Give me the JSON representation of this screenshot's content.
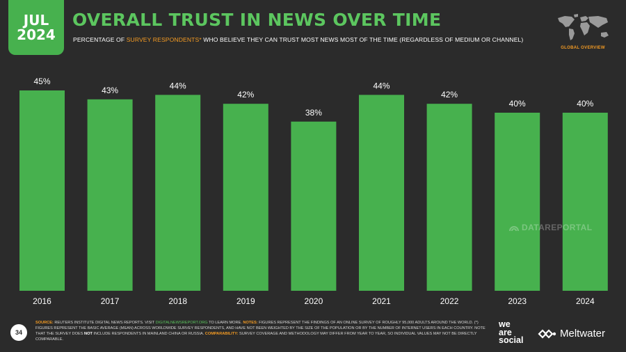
{
  "badge": {
    "month": "JUL",
    "year": "2024"
  },
  "header": {
    "title": "OVERALL TRUST IN NEWS OVER TIME",
    "subtitle_before": "PERCENTAGE OF ",
    "subtitle_highlight": "SURVEY RESPONDENTS*",
    "subtitle_after": " WHO BELIEVE THEY CAN TRUST MOST NEWS MOST OF THE TIME (REGARDLESS OF MEDIUM OR CHANNEL)",
    "global_overview": "GLOBAL OVERVIEW"
  },
  "chart_data": {
    "type": "bar",
    "categories": [
      "2016",
      "2017",
      "2018",
      "2019",
      "2020",
      "2021",
      "2022",
      "2023",
      "2024"
    ],
    "values": [
      45,
      43,
      44,
      42,
      38,
      44,
      42,
      40,
      40
    ],
    "value_labels": [
      "45%",
      "43%",
      "44%",
      "42%",
      "38%",
      "44%",
      "42%",
      "40%",
      "40%"
    ],
    "ylim": [
      0,
      50
    ],
    "title": "",
    "xlabel": "",
    "ylabel": "",
    "grid": false,
    "bar_color": "#47b14e"
  },
  "watermark": "DATAREPORTAL",
  "footer": {
    "page_number": "34",
    "source_label": "SOURCE:",
    "source_text": " REUTERS INSTITUTE DIGITAL NEWS REPORTS. VISIT ",
    "source_link": "DIGITALNEWSREPORT.ORG",
    "source_tail": " TO LEARN MORE. ",
    "notes_label": "NOTES:",
    "notes_text": " FIGURES REPRESENT THE FINDINGS OF AN ONLINE SURVEY OF ROUGHLY 95,000 ADULTS AROUND THE WORLD. (*) FIGURES REPRESENT THE BASIC AVERAGE (MEAN) ACROSS WORLDWIDE SURVEY RESPONDENTS, AND HAVE NOT BEEN WEIGHTED BY THE SIZE OF THE POPULATION OR BY THE NUMBER OF INTERNET USERS IN EACH COUNTRY. NOTE THAT THE SURVEY DOES ",
    "notes_not": "NOT",
    "notes_tail": " INCLUDE RESPONDENTS IN MAINLAND CHINA OR RUSSIA. ",
    "comparability_label": "COMPARABILITY:",
    "comparability_text": " SURVEY COVERAGE AND METHODOLOGY MAY DIFFER FROM YEAR TO YEAR, SO INDIVIDUAL VALUES MAY NOT BE DIRECTLY COMPARABLE."
  },
  "logos": {
    "was_line1": "we",
    "was_line2": "are",
    "was_line3": "social",
    "meltwater": "Meltwater"
  },
  "colors": {
    "background": "#2b2b2b",
    "accent_green": "#47b14e",
    "title_green": "#5cc65f",
    "highlight_orange": "#f29a23"
  }
}
